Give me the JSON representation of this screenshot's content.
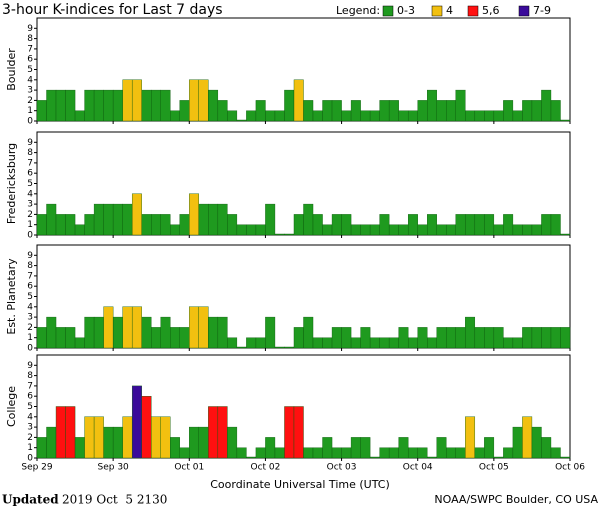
{
  "chart_data": {
    "type": "bar",
    "title": "3-hour K-indices for Last 7 days",
    "legend_title": "Legend:",
    "legend": [
      {
        "label": "0-3",
        "color": "#1f9a1f"
      },
      {
        "label": "4",
        "color": "#f2c010"
      },
      {
        "label": "5,6",
        "color": "#ff1010"
      },
      {
        "label": "7-9",
        "color": "#3a0a9a"
      }
    ],
    "ylim": [
      0,
      10
    ],
    "yticks": [
      0,
      1,
      2,
      3,
      4,
      5,
      6,
      7,
      8,
      9
    ],
    "xtick_labels": [
      "Sep 29",
      "Sep 30",
      "Oct 01",
      "Oct 02",
      "Oct 03",
      "Oct 04",
      "Oct 05",
      "Oct 06"
    ],
    "xlabel": "Coordinate Universal Time (UTC)",
    "panels": [
      {
        "name": "Boulder",
        "values": [
          2,
          3,
          3,
          3,
          1,
          3,
          3,
          3,
          3,
          4,
          4,
          3,
          3,
          3,
          1,
          2,
          4,
          4,
          3,
          2,
          1,
          0,
          1,
          2,
          1,
          1,
          3,
          4,
          2,
          1,
          2,
          2,
          1,
          2,
          1,
          1,
          2,
          2,
          1,
          1,
          2,
          3,
          2,
          2,
          3,
          1,
          1,
          1,
          1,
          2,
          1,
          2,
          2,
          3,
          2,
          0
        ]
      },
      {
        "name": "Fredericksburg",
        "values": [
          2,
          3,
          2,
          2,
          1,
          2,
          3,
          3,
          3,
          3,
          4,
          2,
          2,
          2,
          1,
          2,
          4,
          3,
          3,
          3,
          2,
          1,
          1,
          1,
          3,
          0,
          0,
          2,
          3,
          2,
          1,
          2,
          2,
          1,
          1,
          1,
          2,
          1,
          1,
          2,
          1,
          2,
          1,
          1,
          2,
          2,
          2,
          2,
          1,
          2,
          1,
          1,
          1,
          2,
          2,
          0
        ]
      },
      {
        "name": "Est. Planetary",
        "values": [
          2,
          3,
          2,
          2,
          1,
          3,
          3,
          4,
          3,
          4,
          4,
          3,
          2,
          3,
          2,
          2,
          4,
          4,
          3,
          3,
          1,
          0,
          1,
          1,
          3,
          0,
          0,
          2,
          3,
          1,
          1,
          2,
          2,
          1,
          2,
          1,
          1,
          1,
          2,
          1,
          2,
          1,
          2,
          2,
          2,
          3,
          2,
          2,
          2,
          1,
          1,
          2,
          2,
          2,
          2,
          2
        ]
      },
      {
        "name": "College",
        "values": [
          2,
          3,
          5,
          5,
          2,
          4,
          4,
          3,
          3,
          4,
          7,
          6,
          4,
          4,
          2,
          1,
          3,
          3,
          5,
          5,
          3,
          1,
          0,
          1,
          2,
          1,
          5,
          5,
          1,
          1,
          2,
          1,
          1,
          2,
          2,
          0,
          1,
          1,
          2,
          1,
          1,
          0,
          2,
          1,
          1,
          4,
          1,
          2,
          0,
          1,
          3,
          4,
          3,
          2,
          1,
          0
        ]
      }
    ],
    "updated_label": "Updated",
    "updated": "2019 Oct  5 2130",
    "credit": "NOAA/SWPC Boulder, CO USA"
  }
}
